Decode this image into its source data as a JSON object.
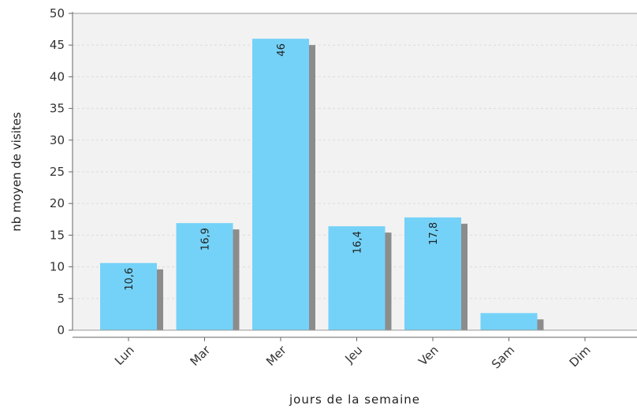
{
  "chart_data": {
    "type": "bar",
    "title": "",
    "xlabel": "jours de la semaine",
    "ylabel": "nb moyen de visites",
    "categories": [
      "Lun",
      "Mar",
      "Mer",
      "Jeu",
      "Ven",
      "Sam",
      "Dim"
    ],
    "values": [
      10.6,
      16.9,
      46,
      16.4,
      17.8,
      2.7,
      0
    ],
    "value_labels": [
      "10,6",
      "16,9",
      "46",
      "16,4",
      "17,8",
      "",
      ""
    ],
    "ylim": [
      0,
      50
    ],
    "yticks": [
      "0",
      "5",
      "10",
      "15",
      "20",
      "25",
      "30",
      "35",
      "40",
      "45",
      "50"
    ],
    "grid": true,
    "legend": "none",
    "colors": {
      "bar": "#74d2f8",
      "shadow": "#8c8c8c",
      "plot_bg": "#f2f2f2",
      "grid": "#dcdcdc"
    }
  }
}
